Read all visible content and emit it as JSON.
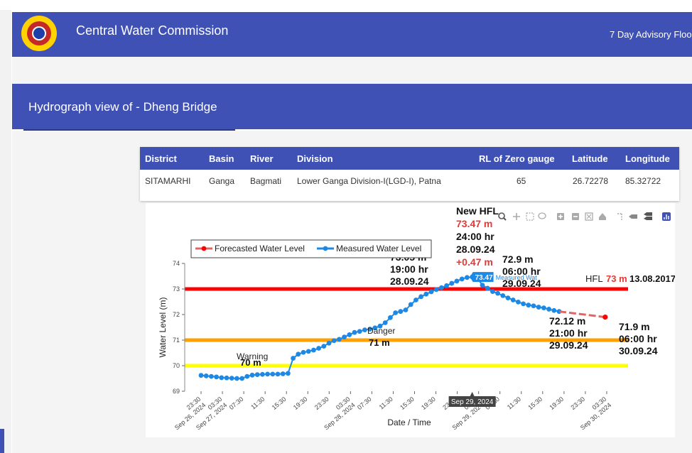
{
  "header": {
    "title": "Central Water Commission",
    "advisory": "7 Day Advisory Flooc"
  },
  "section": {
    "title": "Hydrograph view of - Dheng Bridge"
  },
  "station_table": {
    "columns": [
      "District",
      "Basin",
      "River",
      "Division",
      "RL of Zero gauge",
      "Latitude",
      "Longitude"
    ],
    "row": [
      "SITAMARHI",
      "Ganga",
      "Bagmati",
      "Lower Ganga Division-I(LGD-I), Patna",
      "65",
      "26.72278",
      "85.32722"
    ]
  },
  "toolbox_icons": [
    "zoom-icon",
    "pan-icon",
    "rect-select-icon",
    "lasso-icon",
    "zoom-in-icon",
    "zoom-out-icon",
    "autoscale-icon",
    "home-icon",
    "spike-icon",
    "hover-closest-icon",
    "hover-compare-icon",
    "plotly-logo-icon"
  ],
  "chart_data": {
    "type": "line",
    "xlabel": "Date / Time",
    "ylabel": "Water Level (m)",
    "ylim": [
      69,
      74
    ],
    "yticks": [
      69,
      70,
      71,
      72,
      73,
      74
    ],
    "x_tick_labels": [
      "23:30\nSep 26, 2024",
      "03:30\nSep 27, 2024",
      "07:30",
      "11:30",
      "15:30",
      "19:30",
      "23:30",
      "03:30\nSep 28, 2024",
      "07:30",
      "11:30",
      "15:30",
      "19:30",
      "23:30",
      "03:30\nSep 29, 2024",
      "07:30",
      "11:30",
      "15:30",
      "19:30",
      "23:30",
      "03:30\nSep 30, 2024"
    ],
    "hover_x_label": "Sep 29, 2024",
    "legend": {
      "position": "top-left",
      "entries": [
        "Forecasted Water Level",
        "Measured Water Level"
      ]
    },
    "colors": {
      "forecast": "#e06666",
      "measured": "#1e88e5",
      "hfl": "#ff0000",
      "danger": "#ff9f00",
      "warning": "#ffff00",
      "red_text": "#e53935"
    },
    "reference_lines": [
      {
        "name": "HFL",
        "value": 73
      },
      {
        "name": "Danger",
        "value": 71
      },
      {
        "name": "Warning",
        "value": 70
      }
    ],
    "series": [
      {
        "name": "Measured Water Level",
        "x_hours": [
          0,
          1,
          2,
          3,
          4,
          5,
          6,
          7,
          8,
          9,
          10,
          11,
          12,
          13,
          14,
          15,
          16,
          17,
          18,
          19,
          20,
          21,
          22,
          23,
          24,
          25,
          26,
          27,
          28,
          29,
          30,
          31,
          32,
          33,
          34,
          35,
          36,
          37,
          38,
          39,
          40,
          41,
          42,
          43,
          44,
          45,
          46,
          47,
          48,
          49,
          50,
          51,
          52,
          53,
          54,
          55,
          56,
          57,
          58,
          59,
          60,
          61,
          62,
          63,
          64,
          65,
          66,
          67,
          68,
          69,
          70
        ],
        "values": [
          69.62,
          69.6,
          69.58,
          69.56,
          69.53,
          69.52,
          69.51,
          69.5,
          69.5,
          69.58,
          69.63,
          69.65,
          69.66,
          69.67,
          69.67,
          69.67,
          69.68,
          69.7,
          70.29,
          70.45,
          70.52,
          70.56,
          70.61,
          70.68,
          70.76,
          70.88,
          70.98,
          71.03,
          71.12,
          71.21,
          71.3,
          71.34,
          71.4,
          71.43,
          71.48,
          71.55,
          71.68,
          71.88,
          72.07,
          72.12,
          72.18,
          72.39,
          72.57,
          72.7,
          72.8,
          72.89,
          72.98,
          73.05,
          73.13,
          73.22,
          73.31,
          73.39,
          73.45,
          73.47,
          73.43,
          73.15,
          73.03,
          72.9,
          72.83,
          72.74,
          72.65,
          72.57,
          72.49,
          72.42,
          72.37,
          72.34,
          72.29,
          72.26,
          72.21,
          72.16,
          72.12
        ]
      },
      {
        "name": "Forecasted Water Level",
        "x_hours": [
          70,
          79
        ],
        "values": [
          72.12,
          71.9
        ]
      }
    ],
    "annotations": [
      {
        "lines": [
          "73.05 m",
          "19:00 hr",
          "28.09.24"
        ]
      },
      {
        "lines": [
          "New HFL",
          "73.47 m",
          "24:00 hr",
          "28.09.24",
          "+0.47 m"
        ],
        "red_lines": [
          1,
          4
        ]
      },
      {
        "lines": [
          "72.9 m",
          "06:00 hr",
          "29.09.24"
        ]
      },
      {
        "lines": [
          "72.12 m",
          "21:00 hr",
          "29.09.24"
        ]
      },
      {
        "lines": [
          "71.9 m",
          "06:00 hr",
          "30.09.24"
        ]
      },
      {
        "lines": [
          "Danger",
          "71 m"
        ]
      },
      {
        "lines": [
          "Warning",
          "70 m"
        ]
      },
      {
        "prefix": "HFL ",
        "value": "73 m",
        "suffix": "13.08.2017"
      }
    ],
    "hover": {
      "value": "73.47",
      "label": "Measured Wat"
    }
  }
}
